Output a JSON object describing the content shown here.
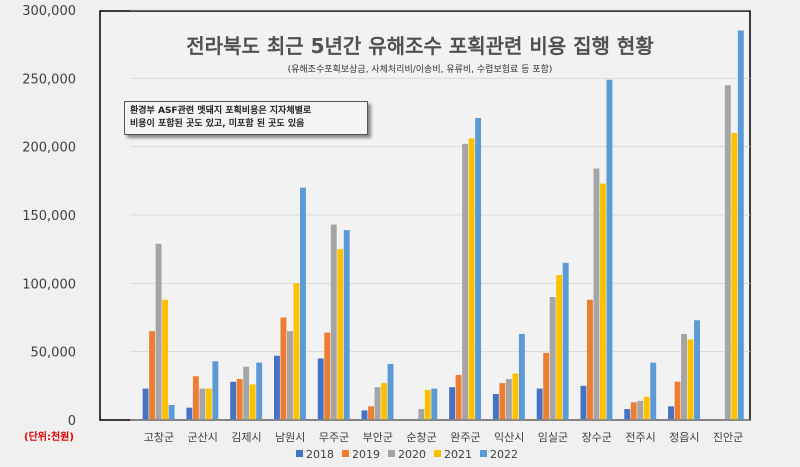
{
  "chart_data": {
    "type": "bar",
    "title": "전라북도 최근 5년간 유해조수 포획관련 비용 집행 현황",
    "subtitle": "(유해조수포획보상금, 사체처리비/이송비, 유류비, 수렵보험료 등 포함)",
    "annotation": [
      "환경부 ASF관련 멧돼지 포획비용은 지자체별로",
      "비용이 포함된 곳도 있고, 미포함 된 곳도 있음"
    ],
    "unit_label": "(단위:천원)",
    "xlabel": "",
    "ylabel": "",
    "ylim": [
      0,
      300000
    ],
    "yticks": [
      0,
      50000,
      100000,
      150000,
      200000,
      250000,
      300000
    ],
    "ytick_labels": [
      "0",
      "50,000",
      "100,000",
      "150,000",
      "200,000",
      "250,000",
      "300,000"
    ],
    "grid": true,
    "legend_position": "bottom",
    "categories": [
      "고창군",
      "군산시",
      "김제시",
      "남원시",
      "무주군",
      "부안군",
      "순창군",
      "완주군",
      "익산시",
      "임실군",
      "장수군",
      "전주시",
      "정읍시",
      "진안군"
    ],
    "series": [
      {
        "name": "2018",
        "color": "#4472c4",
        "values": [
          23000,
          9000,
          28000,
          47000,
          45000,
          7000,
          0,
          24000,
          19000,
          23000,
          25000,
          8000,
          10000,
          0
        ]
      },
      {
        "name": "2019",
        "color": "#ed7d31",
        "values": [
          65000,
          32000,
          30000,
          75000,
          64000,
          10000,
          0,
          33000,
          27000,
          49000,
          88000,
          13000,
          28000,
          0
        ]
      },
      {
        "name": "2020",
        "color": "#a5a5a5",
        "values": [
          129000,
          23000,
          39000,
          65000,
          143000,
          24000,
          8000,
          202000,
          30000,
          90000,
          184000,
          14000,
          63000,
          245000
        ]
      },
      {
        "name": "2021",
        "color": "#ffc000",
        "values": [
          88000,
          23000,
          26000,
          100000,
          125000,
          27000,
          22000,
          206000,
          34000,
          106000,
          173000,
          17000,
          59000,
          210000
        ]
      },
      {
        "name": "2022",
        "color": "#5b9bd5",
        "values": [
          11000,
          43000,
          42000,
          170000,
          139000,
          41000,
          23000,
          221000,
          63000,
          115000,
          249000,
          42000,
          73000,
          285000
        ]
      }
    ]
  }
}
